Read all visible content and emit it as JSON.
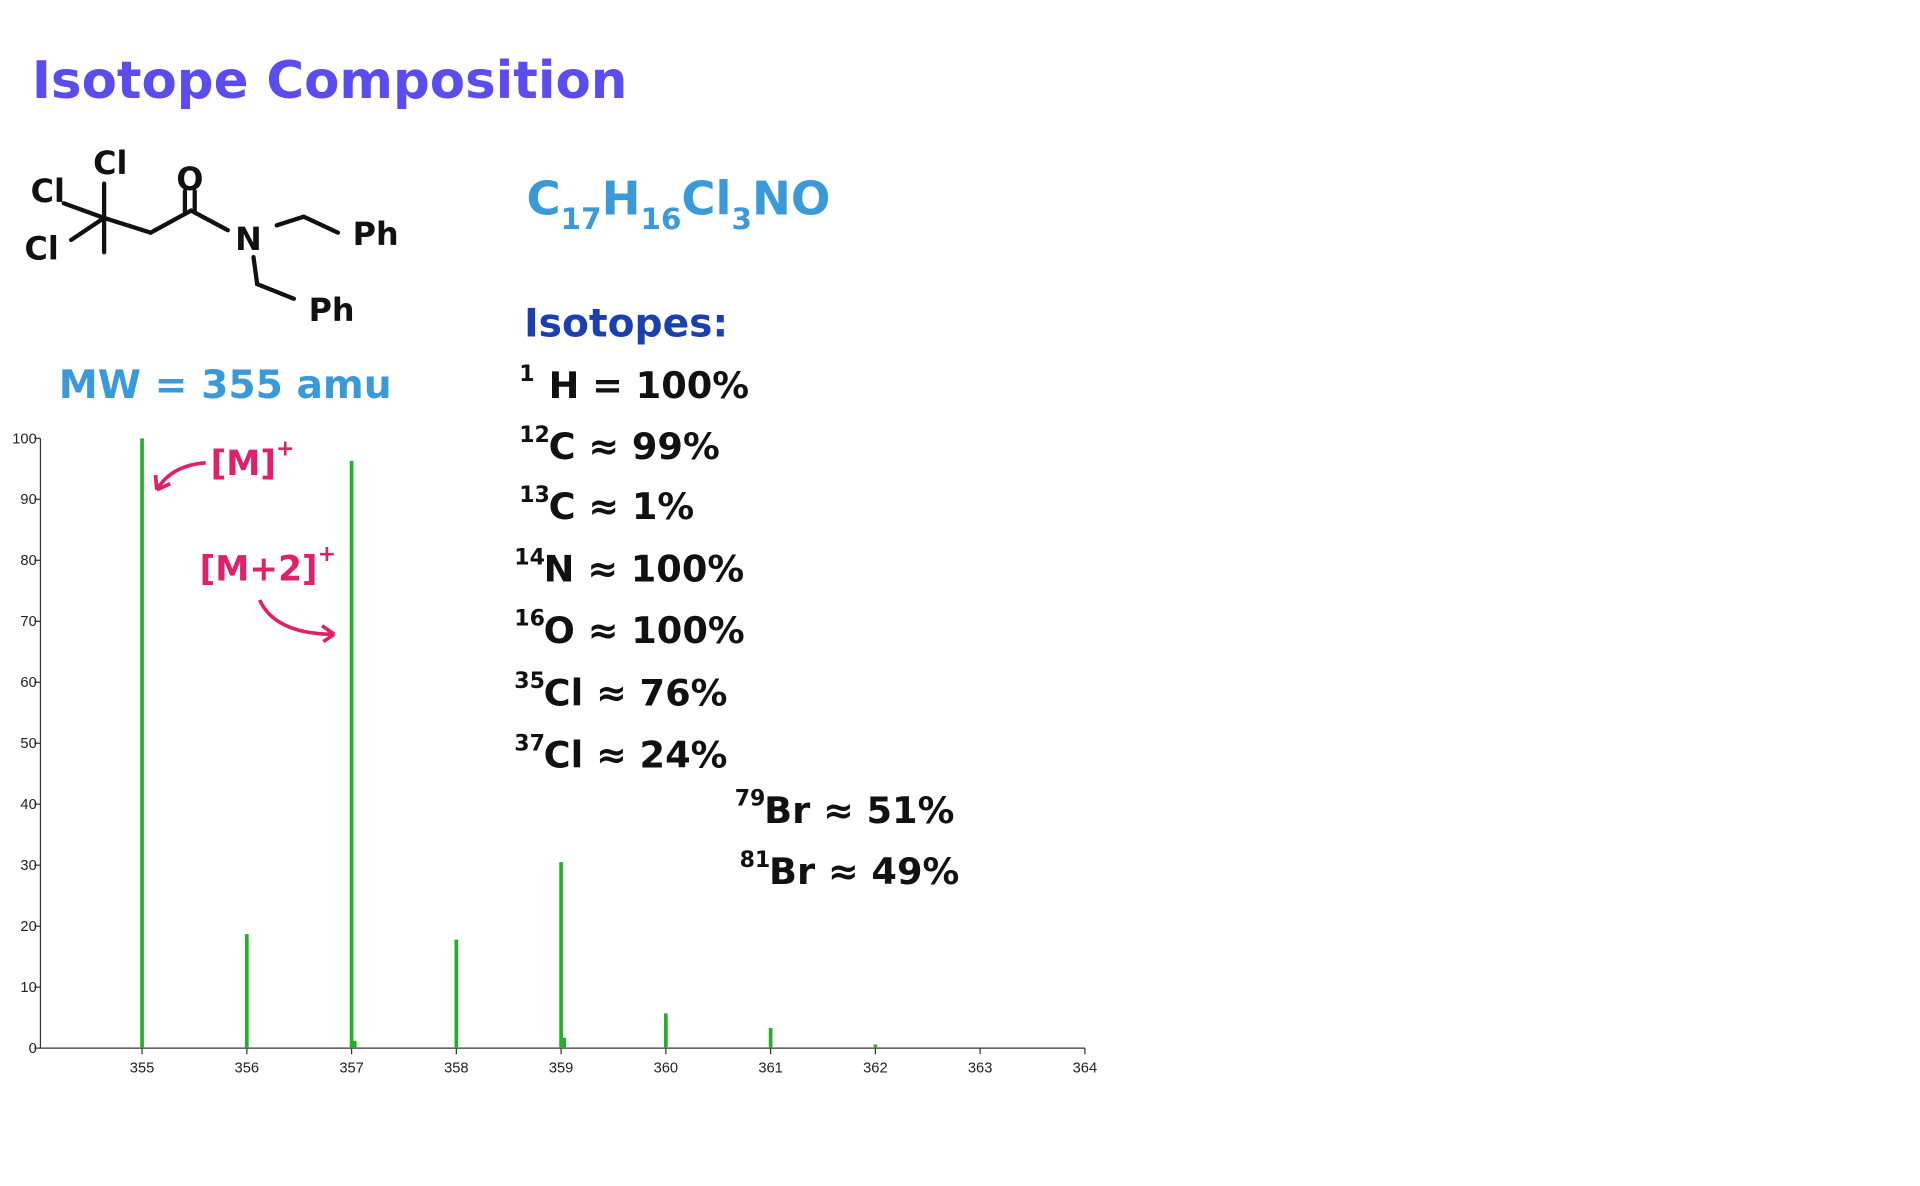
{
  "title": "Isotope Composition",
  "formula": [
    {
      "t": "C",
      "s": "17"
    },
    {
      "t": "H",
      "s": "16"
    },
    {
      "t": "Cl",
      "s": "3"
    },
    {
      "t": "NO"
    }
  ],
  "molecular_weight": "MW = 355 amu",
  "structure": {
    "labels": [
      "Cl",
      "Cl",
      "Cl",
      "O",
      "N",
      "Ph",
      "Ph"
    ]
  },
  "isotopes": {
    "heading": "Isotopes:",
    "items": [
      {
        "mass": "1",
        "text": "H = 100%"
      },
      {
        "mass": "12",
        "text": "C ≈ 99%"
      },
      {
        "mass": "13",
        "text": "C ≈ 1%"
      },
      {
        "mass": "14",
        "text": "N ≈ 100%"
      },
      {
        "mass": "16",
        "text": "O ≈ 100%"
      },
      {
        "mass": "35",
        "text": "Cl ≈ 76%"
      },
      {
        "mass": "37",
        "text": "Cl ≈ 24%"
      },
      {
        "mass": "79",
        "text": "Br ≈ 51%"
      },
      {
        "mass": "81",
        "text": "Br ≈ 49%"
      }
    ]
  },
  "annotations": [
    {
      "text": "[M]",
      "sup": "+"
    },
    {
      "text": "[M+2]",
      "sup": "+"
    }
  ],
  "chart_data": {
    "type": "bar",
    "x": [
      355,
      356,
      357,
      357.03,
      358,
      359,
      359.03,
      360,
      361,
      362
    ],
    "values": [
      100,
      18.7,
      96.3,
      1.2,
      17.8,
      30.5,
      1.7,
      5.7,
      3.3,
      0.6
    ],
    "color": "#22b02a",
    "xlim": [
      354.03,
      364
    ],
    "ylim": [
      0,
      100
    ],
    "xticks": [
      355,
      356,
      357,
      358,
      359,
      360,
      361,
      362,
      363,
      364
    ],
    "yticks": [
      0,
      10,
      20,
      30,
      40,
      50,
      60,
      70,
      80,
      90,
      100
    ]
  }
}
